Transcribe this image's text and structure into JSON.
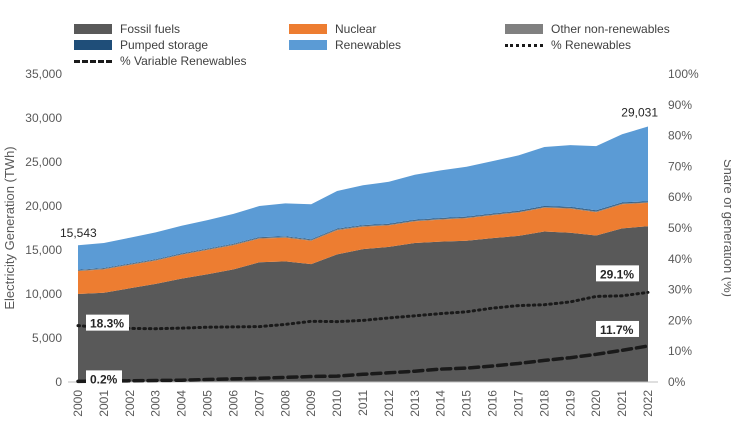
{
  "chart_data": {
    "type": "area",
    "x": [
      "2000",
      "2001",
      "2002",
      "2003",
      "2004",
      "2005",
      "2006",
      "2007",
      "2008",
      "2009",
      "2010",
      "2011",
      "2012",
      "2013",
      "2014",
      "2015",
      "2016",
      "2017",
      "2018",
      "2019",
      "2020",
      "2021",
      "2022"
    ],
    "series": [
      {
        "name": "Fossil fuels",
        "color": "#595959",
        "axis": "left",
        "values": [
          10000,
          10150,
          10650,
          11150,
          11750,
          12250,
          12800,
          13600,
          13700,
          13400,
          14500,
          15100,
          15350,
          15800,
          15950,
          16050,
          16350,
          16600,
          17100,
          16950,
          16650,
          17450,
          17700
        ]
      },
      {
        "name": "Nuclear",
        "color": "#ED7D31",
        "axis": "left",
        "values": [
          2600,
          2650,
          2650,
          2650,
          2700,
          2750,
          2750,
          2700,
          2700,
          2650,
          2750,
          2550,
          2450,
          2450,
          2500,
          2550,
          2600,
          2650,
          2700,
          2750,
          2650,
          2750,
          2650
        ]
      },
      {
        "name": "Other non-renewables",
        "color": "#808080",
        "axis": "left",
        "values": [
          100,
          100,
          100,
          100,
          100,
          100,
          100,
          100,
          100,
          100,
          100,
          100,
          100,
          100,
          100,
          100,
          100,
          100,
          100,
          100,
          100,
          100,
          100
        ]
      },
      {
        "name": "Pumped storage",
        "color": "#1F4E79",
        "axis": "left",
        "values": [
          60,
          60,
          60,
          60,
          60,
          60,
          70,
          70,
          70,
          80,
          80,
          80,
          80,
          90,
          90,
          90,
          90,
          90,
          100,
          100,
          100,
          100,
          100
        ]
      },
      {
        "name": "Renewables",
        "color": "#5B9BD5",
        "axis": "left",
        "values": [
          2783,
          2840,
          2940,
          3040,
          3140,
          3240,
          3380,
          3530,
          3720,
          3970,
          4270,
          4520,
          4770,
          5110,
          5410,
          5660,
          5960,
          6310,
          6700,
          7020,
          7310,
          7760,
          8481
        ]
      },
      {
        "name": "% Renewables",
        "color": "#1a1a1a",
        "style": "dotted",
        "axis": "right",
        "values": [
          18.3,
          17.6,
          17.4,
          17.3,
          17.5,
          17.8,
          17.9,
          18.0,
          18.7,
          19.7,
          19.6,
          20.0,
          20.8,
          21.5,
          22.2,
          22.8,
          24.0,
          24.8,
          25.1,
          26.0,
          27.8,
          28.0,
          29.1
        ]
      },
      {
        "name": "% Variable Renewables",
        "color": "#1a1a1a",
        "style": "dashed",
        "axis": "right",
        "values": [
          0.2,
          0.3,
          0.4,
          0.5,
          0.6,
          0.8,
          1.0,
          1.2,
          1.5,
          1.8,
          1.9,
          2.5,
          3.0,
          3.5,
          4.2,
          4.5,
          5.2,
          6.0,
          7.0,
          7.9,
          9.0,
          10.3,
          11.7
        ]
      }
    ],
    "annotations": {
      "total_start": "15,543",
      "total_end": "29,031",
      "pct_ren_start": "18.3%",
      "pct_ren_end": "29.1%",
      "pct_var_start": "0.2%",
      "pct_var_end": "11.7%"
    },
    "ylabel": "Electricity Generation (TWh)",
    "y2label": "Share of generation (%)",
    "ylim": [
      0,
      35000
    ],
    "y2lim": [
      0,
      100
    ],
    "yticks": [
      "0",
      "5,000",
      "10,000",
      "15,000",
      "20,000",
      "25,000",
      "30,000",
      "35,000"
    ],
    "y2ticks": [
      "0%",
      "10%",
      "20%",
      "30%",
      "40%",
      "50%",
      "60%",
      "70%",
      "80%",
      "90%",
      "100%"
    ],
    "grid": false,
    "legend": "top"
  }
}
